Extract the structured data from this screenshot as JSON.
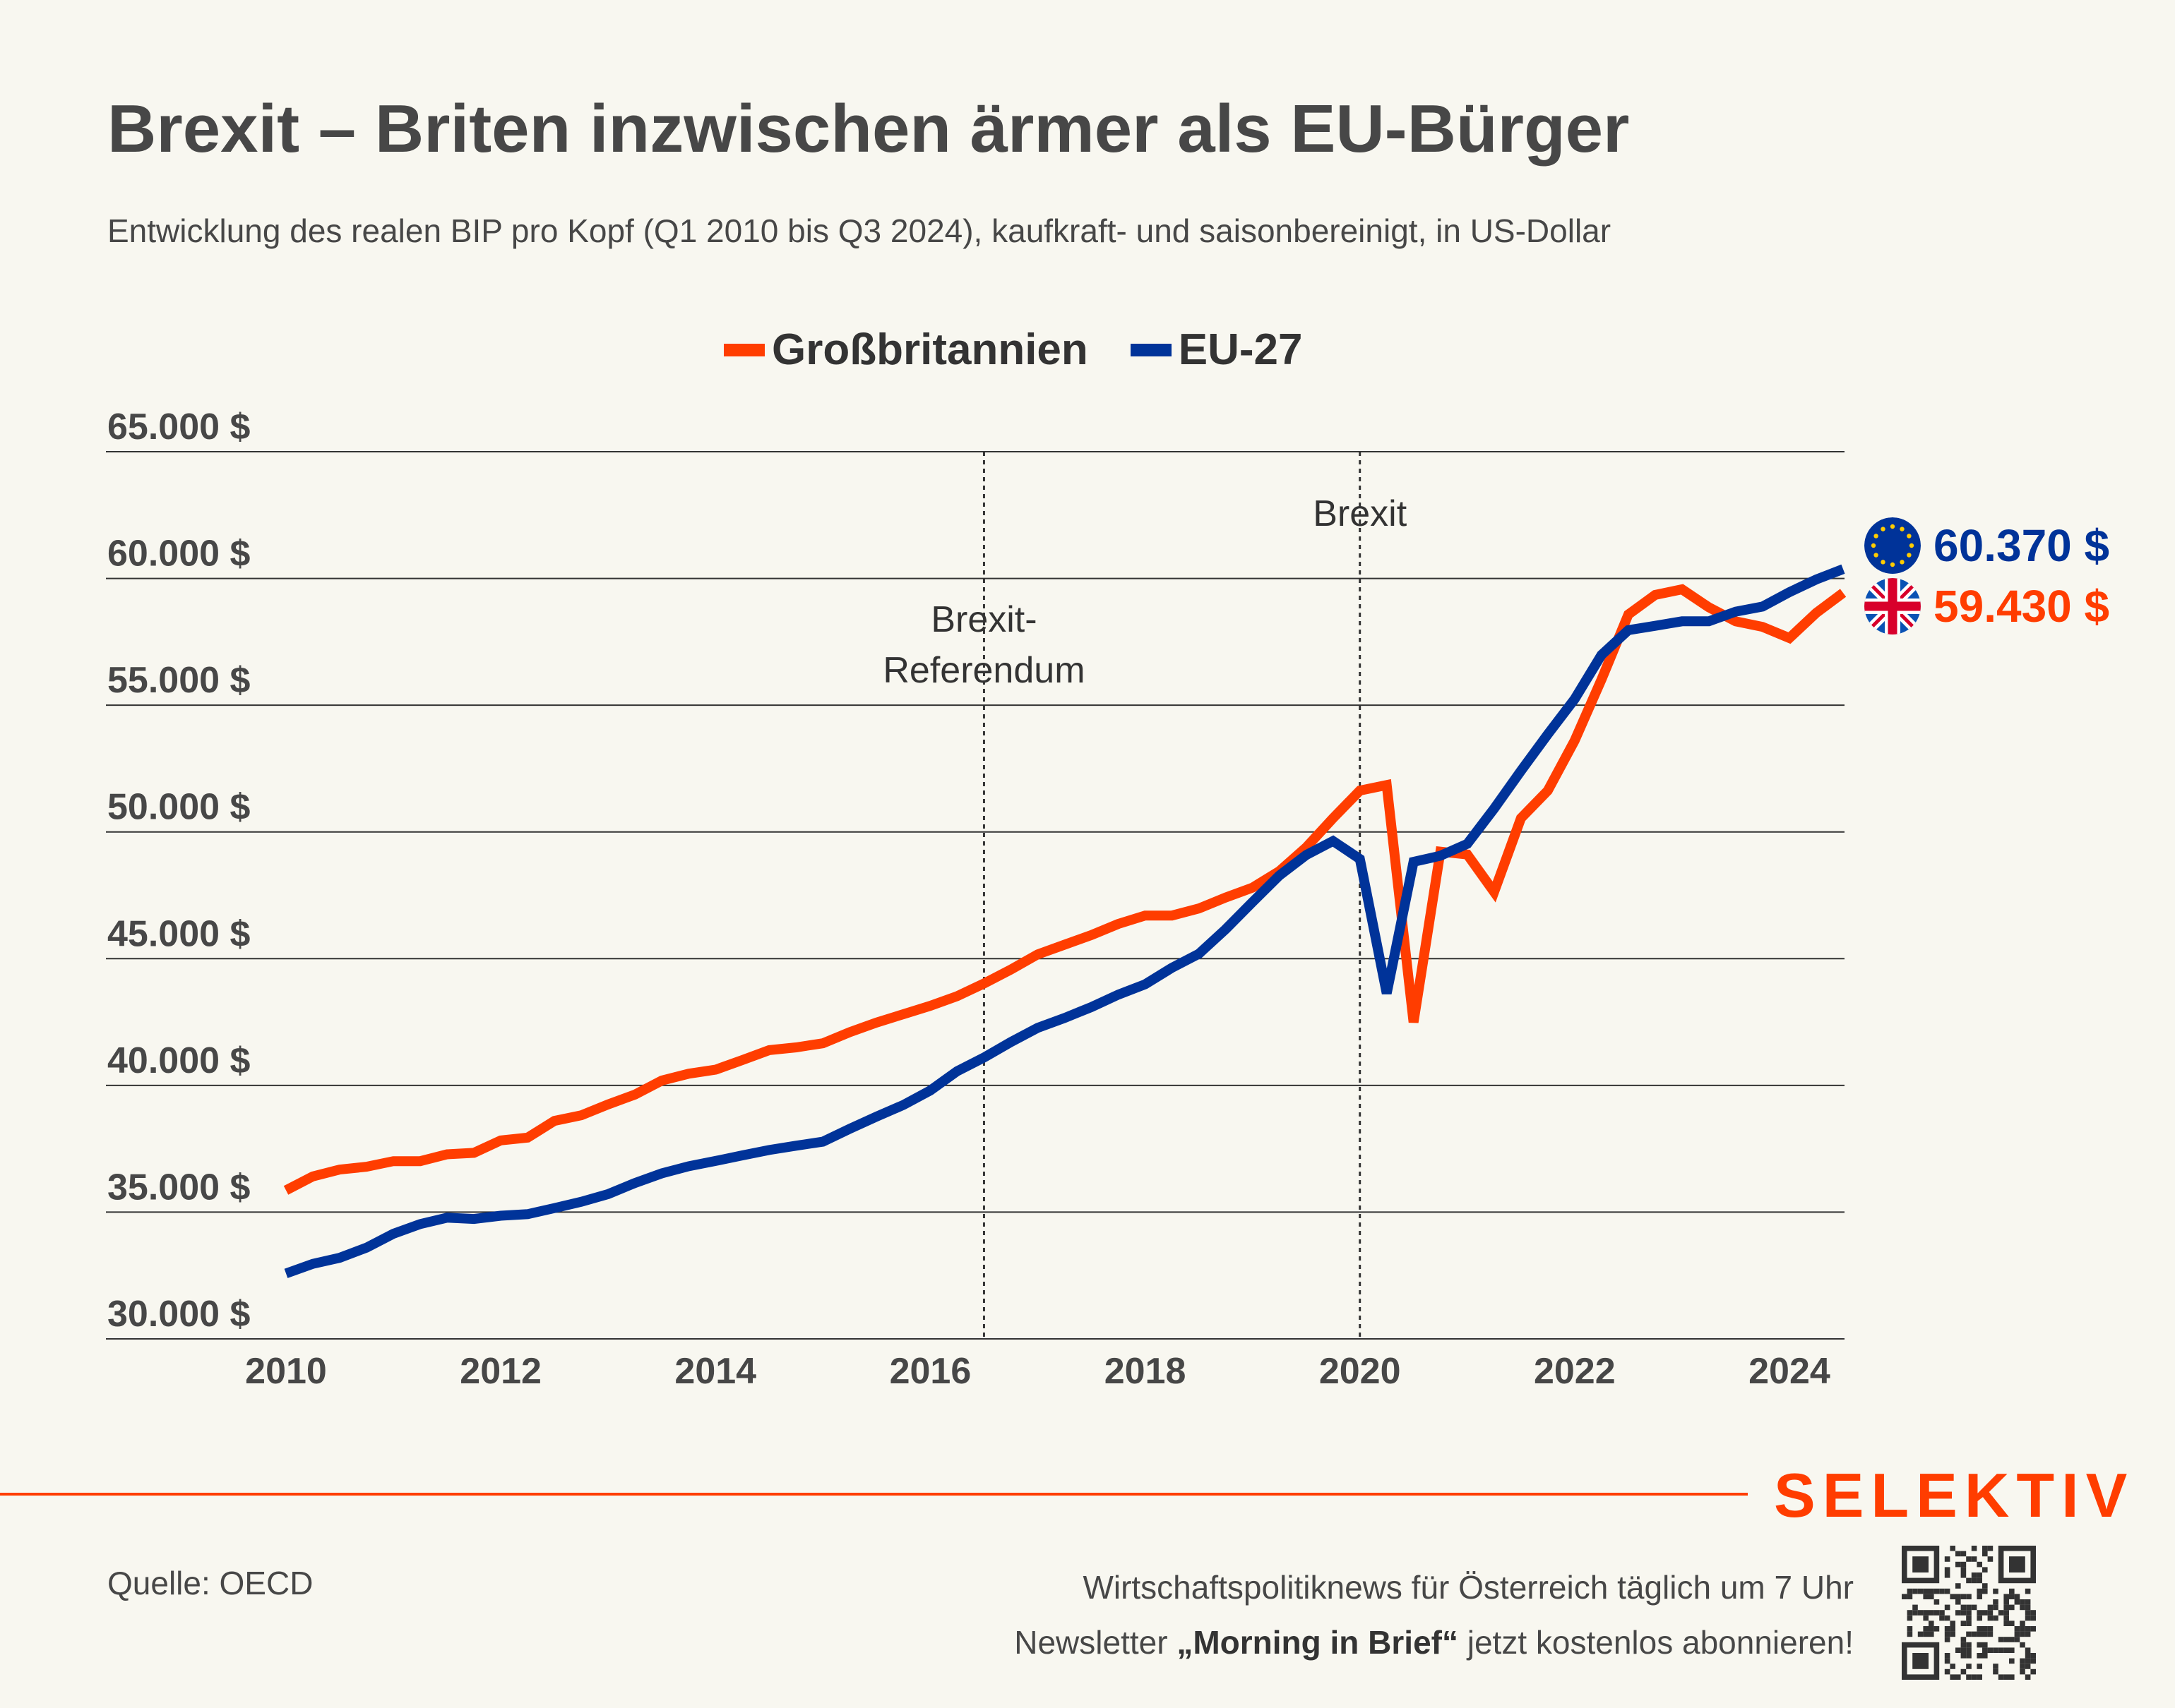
{
  "header": {
    "title": "Brexit – Briten inzwischen ärmer als EU-Bürger",
    "subtitle": "Entwicklung des realen BIP pro Kopf (Q1 2010 bis Q3 2024), kaufkraft- und saisonbereinigt, in US-Dollar"
  },
  "legend": {
    "gb": "Großbritannien",
    "eu": "EU-27"
  },
  "end_labels": {
    "eu": "60.370 $",
    "gb": "59.430 $"
  },
  "footer": {
    "brand": "SELEKTIV",
    "source": "Quelle: OECD",
    "promo_line1": "Wirtschaftspolitiknews für Österreich täglich um 7 Uhr",
    "promo_line2_pre": "Newsletter ",
    "promo_line2_bold": "„Morning in Brief“",
    "promo_line2_post": " jetzt kostenlos abonnieren!"
  },
  "colors": {
    "gb": "#ff3d00",
    "eu": "#003399",
    "grid": "#333333",
    "background": "#f8f7f0"
  },
  "chart_data": {
    "type": "line",
    "title": "Brexit – Briten inzwischen ärmer als EU-Bürger",
    "xlabel": "",
    "ylabel": "",
    "x_start": "2010 Q1",
    "x_end": "2024 Q3",
    "x_ticks": [
      "2010",
      "2012",
      "2014",
      "2016",
      "2018",
      "2020",
      "2022",
      "2024"
    ],
    "y_ticks": [
      "30.000 $",
      "35.000 $",
      "40.000 $",
      "45.000 $",
      "50.000 $",
      "55.000 $",
      "60.000 $",
      "65.000 $"
    ],
    "ylim": [
      30000,
      65000
    ],
    "grid": true,
    "legend_position": "top-center",
    "annotations": [
      {
        "label": "Brexit-\nReferendum",
        "x": 2016.5
      },
      {
        "label": "Brexit",
        "x": 2020.0
      }
    ],
    "series": [
      {
        "name": "Großbritannien",
        "values": [
          35860,
          36410,
          36680,
          36790,
          37010,
          37010,
          37280,
          37340,
          37830,
          37940,
          38600,
          38820,
          39250,
          39640,
          40190,
          40460,
          40620,
          41000,
          41390,
          41500,
          41660,
          42100,
          42480,
          42810,
          43140,
          43520,
          44020,
          44570,
          45170,
          45550,
          45930,
          46370,
          46700,
          46700,
          46980,
          47410,
          47800,
          48450,
          49390,
          50540,
          51630,
          51850,
          42490,
          49220,
          49110,
          47630,
          50540,
          51630,
          53600,
          56010,
          58580,
          59350,
          59570,
          58860,
          58310,
          58090,
          57650,
          58640,
          59430
        ]
      },
      {
        "name": "EU-27",
        "values": [
          32580,
          32960,
          33200,
          33600,
          34150,
          34530,
          34780,
          34730,
          34860,
          34920,
          35160,
          35410,
          35710,
          36150,
          36530,
          36810,
          37020,
          37240,
          37450,
          37620,
          37780,
          38290,
          38770,
          39230,
          39800,
          40560,
          41100,
          41710,
          42270,
          42660,
          43090,
          43580,
          43990,
          44640,
          45190,
          46160,
          47230,
          48280,
          49090,
          49640,
          48930,
          43630,
          48820,
          49060,
          49530,
          50920,
          52410,
          53850,
          55240,
          56980,
          57960,
          58130,
          58310,
          58310,
          58690,
          58890,
          59460,
          59960,
          60370
        ]
      }
    ]
  }
}
